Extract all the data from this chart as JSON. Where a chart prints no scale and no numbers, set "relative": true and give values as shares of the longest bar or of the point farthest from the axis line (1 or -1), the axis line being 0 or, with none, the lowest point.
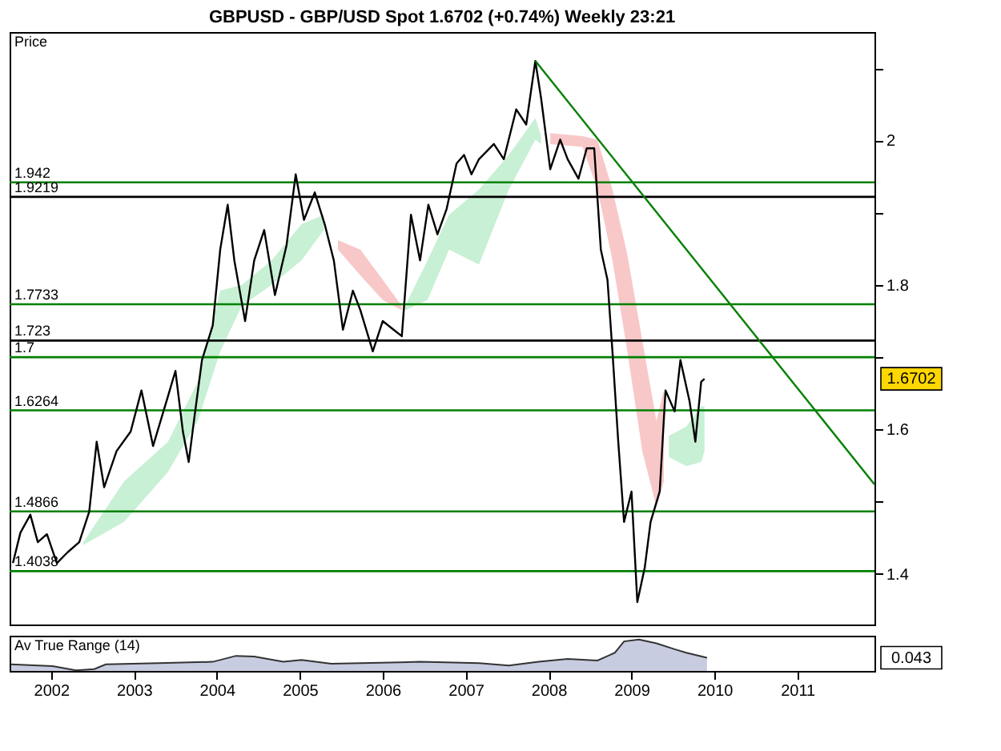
{
  "chart_data": [
    {
      "type": "line",
      "title": "GBPUSD - GBP/USD Spot    1.6702 (+0.74%)    Weekly  23:21",
      "xlim": [
        2001.5,
        2011.93
      ],
      "ylim": [
        1.33,
        2.15
      ],
      "xticks": [
        2002,
        2003,
        2004,
        2005,
        2006,
        2007,
        2008,
        2009,
        2010,
        2011
      ],
      "yticks": [
        1.4,
        {
          "value": 1.5,
          "label": null
        },
        1.6,
        {
          "value": 1.7,
          "label": null
        },
        1.8,
        {
          "value": 1.9,
          "label": null
        },
        2,
        {
          "value": 2.1,
          "label": null
        }
      ],
      "tick_labels": "y",
      "grid": false,
      "annotations": [
        "Price",
        "1.6702"
      ],
      "ref_lines": [
        {
          "axis": "y",
          "value": 1.942,
          "label": "1.942",
          "color": "#008000"
        },
        {
          "axis": "y",
          "value": 1.9219,
          "label": "1.9219",
          "color": "#000000"
        },
        {
          "axis": "y",
          "value": 1.7733,
          "label": "1.7733",
          "color": "#008000"
        },
        {
          "axis": "y",
          "value": 1.723,
          "label": "1.723",
          "color": "#000000"
        },
        {
          "axis": "y",
          "value": 1.7,
          "label": "1.7",
          "color": "#008000"
        },
        {
          "axis": "y",
          "value": 1.6264,
          "label": "1.6264",
          "color": "#008000"
        },
        {
          "axis": "y",
          "value": 1.4866,
          "label": "1.4866",
          "color": "#008000"
        },
        {
          "axis": "y",
          "value": 1.4038,
          "label": "1.4038",
          "color": "#008000"
        }
      ],
      "series": [
        {
          "type": "line",
          "color": "#c8f0d4",
          "x": [
            2002.39,
            2002.88,
            2003.41,
            2003.77,
            2004.04,
            2004.3,
            2004.66,
            2005.02,
            2005.29
          ],
          "values": [
            null,
            null,
            null,
            null,
            null,
            null,
            null,
            null,
            null
          ],
          "upper": [
            1.444,
            1.528,
            1.583,
            1.666,
            1.792,
            1.8,
            1.834,
            1.884,
            1.897
          ],
          "lower": [
            1.44,
            1.472,
            1.541,
            1.612,
            1.708,
            1.771,
            1.8,
            1.834,
            1.876
          ]
        },
        {
          "type": "line",
          "color": "#f8c8c8",
          "x": [
            2005.46,
            2005.73,
            2006.0,
            2006.23
          ],
          "values": [
            null,
            null,
            null,
            null
          ],
          "upper": [
            1.862,
            1.849,
            1.807,
            1.771
          ],
          "lower": [
            1.849,
            1.813,
            1.779,
            1.765
          ]
        },
        {
          "type": "line",
          "color": "#c8f0d4",
          "x": [
            2006.27,
            2006.54,
            2006.8,
            2007.16,
            2007.52,
            2007.84,
            2007.91
          ],
          "values": [
            null,
            null,
            null,
            null,
            null,
            null,
            null
          ],
          "upper": [
            1.771,
            1.834,
            1.897,
            1.932,
            1.98,
            2.031,
            2.006
          ],
          "lower": [
            1.765,
            1.779,
            1.849,
            1.828,
            1.932,
            2.001,
            1.995
          ]
        },
        {
          "type": "line",
          "color": "#f8c8c8",
          "x": [
            2008.02,
            2008.41,
            2008.59,
            2008.77,
            2008.95,
            2009.13,
            2009.3,
            2009.39
          ],
          "values": [
            null,
            null,
            null,
            null,
            null,
            null,
            null,
            null
          ],
          "upper": [
            2.01,
            2.006,
            2.001,
            1.932,
            1.842,
            1.723,
            1.612,
            1.654
          ],
          "lower": [
            1.995,
            1.991,
            1.932,
            1.834,
            1.708,
            1.57,
            1.493,
            1.528
          ]
        },
        {
          "type": "line",
          "color": "#c8f0d4",
          "x": [
            2009.45,
            2009.66,
            2009.84,
            2009.88
          ],
          "values": [
            null,
            null,
            null,
            null
          ],
          "upper": [
            1.591,
            1.604,
            1.632,
            1.632
          ],
          "lower": [
            1.562,
            1.549,
            1.555,
            1.57
          ]
        },
        {
          "type": "line",
          "color": "#000000",
          "x": [
            2001.54,
            2001.63,
            2001.75,
            2001.84,
            2001.95,
            2002.07,
            2002.2,
            2002.34,
            2002.46,
            2002.55,
            2002.64,
            2002.79,
            2002.96,
            2003.09,
            2003.23,
            2003.41,
            2003.5,
            2003.59,
            2003.66,
            2003.73,
            2003.82,
            2003.95,
            2004.04,
            2004.13,
            2004.21,
            2004.34,
            2004.45,
            2004.57,
            2004.7,
            2004.84,
            2004.95,
            2005.05,
            2005.18,
            2005.3,
            2005.41,
            2005.52,
            2005.64,
            2005.73,
            2005.88,
            2006.0,
            2006.13,
            2006.23,
            2006.34,
            2006.45,
            2006.55,
            2006.66,
            2006.77,
            2006.89,
            2006.98,
            2007.07,
            2007.16,
            2007.34,
            2007.46,
            2007.61,
            2007.73,
            2007.84,
            2007.91,
            2008.02,
            2008.14,
            2008.23,
            2008.36,
            2008.46,
            2008.55,
            2008.63,
            2008.71,
            2008.77,
            2008.84,
            2008.91,
            2009.0,
            2009.07,
            2009.16,
            2009.23,
            2009.34,
            2009.41,
            2009.52,
            2009.59,
            2009.7,
            2009.77,
            2009.84,
            2009.88
          ],
          "values": [
            1.415,
            1.457,
            1.482,
            1.444,
            1.455,
            1.415,
            1.43,
            1.444,
            1.486,
            1.583,
            1.52,
            1.57,
            1.597,
            1.654,
            1.577,
            1.646,
            1.681,
            1.597,
            1.555,
            1.618,
            1.696,
            1.744,
            1.849,
            1.911,
            1.834,
            1.75,
            1.834,
            1.876,
            1.786,
            1.855,
            1.953,
            1.89,
            1.928,
            1.884,
            1.834,
            1.738,
            1.792,
            1.765,
            1.708,
            1.75,
            1.738,
            1.729,
            1.897,
            1.834,
            1.911,
            1.87,
            1.905,
            1.968,
            1.98,
            1.953,
            1.974,
            1.995,
            1.974,
            2.043,
            2.022,
            2.11,
            2.058,
            1.96,
            2.001,
            1.974,
            1.947,
            1.989,
            1.989,
            1.849,
            1.807,
            1.708,
            1.583,
            1.472,
            1.514,
            1.361,
            1.409,
            1.472,
            1.514,
            1.654,
            1.625,
            1.696,
            1.639,
            1.583,
            1.666,
            1.67
          ]
        },
        {
          "type": "line",
          "color": "#008000",
          "x": [
            2007.84,
            2011.93
          ],
          "values": [
            2.11,
            1.524
          ]
        }
      ]
    },
    {
      "type": "area",
      "title": "Av True Range (14)",
      "relative": true,
      "xlim": [
        2001.5,
        2011.93
      ],
      "xticks": [
        2002,
        2003,
        2004,
        2005,
        2006,
        2007,
        2008,
        2009,
        2010,
        2011
      ],
      "tick_labels": "x",
      "grid": false,
      "annotations": [
        "0.043"
      ],
      "series": [
        {
          "color": "#c8cce0",
          "x": [
            2001.52,
            2002.02,
            2002.3,
            2002.52,
            2002.66,
            2003.3,
            2003.95,
            2004.23,
            2004.45,
            2004.8,
            2005.02,
            2005.38,
            2006.09,
            2006.45,
            2007.16,
            2007.52,
            2007.88,
            2008.23,
            2008.59,
            2008.8,
            2008.91,
            2009.09,
            2009.3,
            2009.52,
            2009.66,
            2009.91
          ],
          "values": [
            0.21,
            0.15,
            0.02,
            0.06,
            0.21,
            0.25,
            0.29,
            0.48,
            0.46,
            0.29,
            0.35,
            0.23,
            0.27,
            0.29,
            0.25,
            0.17,
            0.29,
            0.38,
            0.33,
            0.58,
            0.94,
            1,
            0.88,
            0.69,
            0.58,
            0.42
          ]
        }
      ]
    }
  ]
}
